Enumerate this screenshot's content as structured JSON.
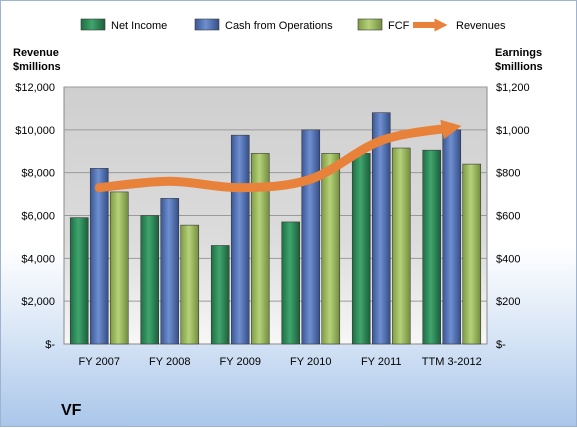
{
  "chart_data": {
    "type": "bar",
    "company": "VF",
    "categories": [
      "FY 2007",
      "FY 2008",
      "FY 2009",
      "FY 2010",
      "FY 2011",
      "TTM 3-2012"
    ],
    "left_axis": {
      "title_line1": "Revenue",
      "title_line2": "$millions",
      "range": [
        0,
        12000
      ],
      "ticks": [
        0,
        2000,
        4000,
        6000,
        8000,
        10000,
        12000
      ],
      "tick_labels": [
        "$-",
        "$2,000",
        "$4,000",
        "$6,000",
        "$8,000",
        "$10,000",
        "$12,000"
      ]
    },
    "right_axis": {
      "title_line1": "Earnings",
      "title_line2": "$millions",
      "range": [
        0,
        1200
      ],
      "ticks": [
        0,
        200,
        400,
        600,
        800,
        1000,
        1200
      ],
      "tick_labels": [
        "$-",
        "$200",
        "$400",
        "$600",
        "$800",
        "$1,000",
        "$1,200"
      ]
    },
    "series": [
      {
        "name": "Net Income",
        "axis": "right",
        "color": "#2e8b57",
        "values": [
          590,
          600,
          460,
          570,
          890,
          905
        ]
      },
      {
        "name": "Cash from Operations",
        "axis": "right",
        "color": "#4f6fb3",
        "values": [
          820,
          680,
          975,
          1000,
          1080,
          1000
        ]
      },
      {
        "name": "FCF",
        "axis": "right",
        "color": "#9bbb59",
        "values": [
          710,
          555,
          890,
          890,
          915,
          840
        ]
      },
      {
        "name": "Revenues",
        "axis": "left",
        "type": "line",
        "color": "#e8823a",
        "values": [
          7300,
          7600,
          7300,
          7700,
          9500,
          10100
        ]
      }
    ],
    "grid": true,
    "legend": "top"
  }
}
